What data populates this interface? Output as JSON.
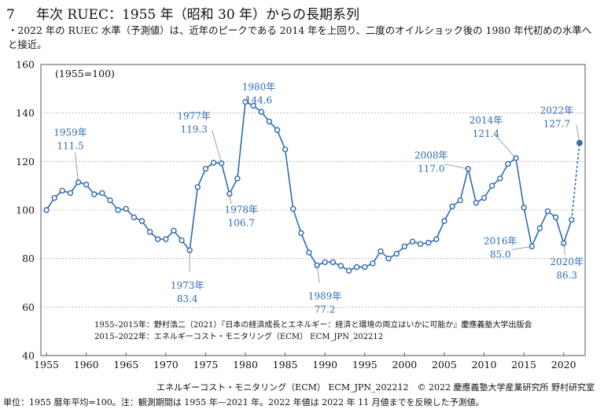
{
  "header": {
    "number": "7",
    "title": "年次 RUEC：1955 年（昭和 30 年）からの長期系列",
    "subtitle": "・2022 年の RUEC 水準（予測値）は、近年のピークである 2014 年を上回り、二度のオイルショック後の 1980 年代初めの水準へと接近。"
  },
  "chart_data": {
    "type": "line",
    "index_note": "(1955=100)",
    "ylim": [
      40,
      160
    ],
    "yticks": [
      40,
      60,
      80,
      100,
      120,
      140,
      160
    ],
    "xlim": [
      1954.3,
      2022.7
    ],
    "xticks": [
      1955,
      1960,
      1965,
      1970,
      1975,
      1980,
      1985,
      1990,
      1995,
      2000,
      2005,
      2010,
      2015,
      2020
    ],
    "grid": true,
    "line_color": "#2e6bb0",
    "point_fill": "#ffffff",
    "forecast_point_fill": "#2e6bb0",
    "series": [
      {
        "values": [
          [
            1955,
            100.0
          ],
          [
            1956,
            105.0
          ],
          [
            1957,
            108.0
          ],
          [
            1958,
            107.0
          ],
          [
            1959,
            111.5
          ],
          [
            1960,
            110.5
          ],
          [
            1961,
            106.5
          ],
          [
            1962,
            107.0
          ],
          [
            1963,
            104.0
          ],
          [
            1964,
            100.0
          ],
          [
            1965,
            100.5
          ],
          [
            1966,
            97.0
          ],
          [
            1967,
            95.5
          ],
          [
            1968,
            91.0
          ],
          [
            1969,
            88.0
          ],
          [
            1970,
            88.0
          ],
          [
            1971,
            91.5
          ],
          [
            1972,
            87.5
          ],
          [
            1973,
            83.4
          ],
          [
            1974,
            109.5
          ],
          [
            1975,
            117.0
          ],
          [
            1976,
            119.5
          ],
          [
            1977,
            119.3
          ],
          [
            1978,
            106.7
          ],
          [
            1979,
            113.0
          ],
          [
            1980,
            144.6
          ],
          [
            1981,
            143.0
          ],
          [
            1982,
            140.5
          ],
          [
            1983,
            136.5
          ],
          [
            1984,
            133.0
          ],
          [
            1985,
            125.0
          ],
          [
            1986,
            100.5
          ],
          [
            1987,
            90.5
          ],
          [
            1988,
            82.5
          ],
          [
            1989,
            77.2
          ],
          [
            1990,
            78.5
          ],
          [
            1991,
            78.5
          ],
          [
            1992,
            77.0
          ],
          [
            1993,
            75.0
          ],
          [
            1994,
            76.5
          ],
          [
            1995,
            76.5
          ],
          [
            1996,
            78.0
          ],
          [
            1997,
            83.0
          ],
          [
            1998,
            80.0
          ],
          [
            1999,
            82.0
          ],
          [
            2000,
            85.0
          ],
          [
            2001,
            87.0
          ],
          [
            2002,
            86.0
          ],
          [
            2003,
            86.5
          ],
          [
            2004,
            88.0
          ],
          [
            2005,
            95.5
          ],
          [
            2006,
            101.5
          ],
          [
            2007,
            104.0
          ],
          [
            2008,
            117.0
          ],
          [
            2009,
            103.0
          ],
          [
            2010,
            105.0
          ],
          [
            2011,
            110.0
          ],
          [
            2012,
            113.0
          ],
          [
            2013,
            119.0
          ],
          [
            2014,
            121.4
          ],
          [
            2015,
            101.0
          ],
          [
            2016,
            85.0
          ],
          [
            2017,
            92.5
          ],
          [
            2018,
            99.5
          ],
          [
            2019,
            97.0
          ],
          [
            2020,
            86.3
          ],
          [
            2021,
            96.0
          ]
        ],
        "forecast": [
          2022,
          127.7
        ]
      }
    ],
    "annotations": [
      {
        "year": "1959年",
        "value": "111.5",
        "x": 1959,
        "y": 111.5,
        "color": "#2e6bb0"
      },
      {
        "year": "1977年",
        "value": "119.3",
        "x": 1977,
        "y": 119.3,
        "color": "#2e6bb0"
      },
      {
        "year": "1978年",
        "value": "106.7",
        "x": 1978,
        "y": 106.7,
        "color": "#2e6bb0"
      },
      {
        "year": "1980年",
        "value": "144.6",
        "x": 1980,
        "y": 144.6,
        "color": "#2e6bb0"
      },
      {
        "year": "1973年",
        "value": "83.4",
        "x": 1973,
        "y": 83.4,
        "color": "#2e6bb0"
      },
      {
        "year": "1989年",
        "value": "77.2",
        "x": 1989,
        "y": 77.2,
        "color": "#2e6bb0"
      },
      {
        "year": "2008年",
        "value": "117.0",
        "x": 2008,
        "y": 117.0,
        "color": "#2e6bb0"
      },
      {
        "year": "2014年",
        "value": "121.4",
        "x": 2014,
        "y": 121.4,
        "color": "#2e6bb0"
      },
      {
        "year": "2016年",
        "value": "85.0",
        "x": 2016,
        "y": 85.0,
        "color": "#2e6bb0"
      },
      {
        "year": "2020年",
        "value": "86.3",
        "x": 2020,
        "y": 86.3,
        "color": "#2e6bb0"
      },
      {
        "year": "2022年",
        "value": "127.7",
        "x": 2022,
        "y": 127.7,
        "color": "#2e6bb0"
      }
    ],
    "source_notes": [
      "1955–2015年：野村浩二（2021）『日本の経済成長とエネルギー：経済と環境の両立はいかに可能か』慶應義塾大学出版会",
      "2015–2022年：エネルギーコスト・モニタリング（ECM） ECM_JPN_202212"
    ]
  },
  "footer": {
    "credit": "エネルギーコスト・モニタリング（ECM） ECM_JPN_202212　© 2022 慶應義塾大学産業研究所 野村研究室",
    "note": "単位：1955 暦年平均=100。注：観測期間は 1955 年—2021 年。2022 年値は 2022 年 11 月値までを反映した予測値。"
  }
}
